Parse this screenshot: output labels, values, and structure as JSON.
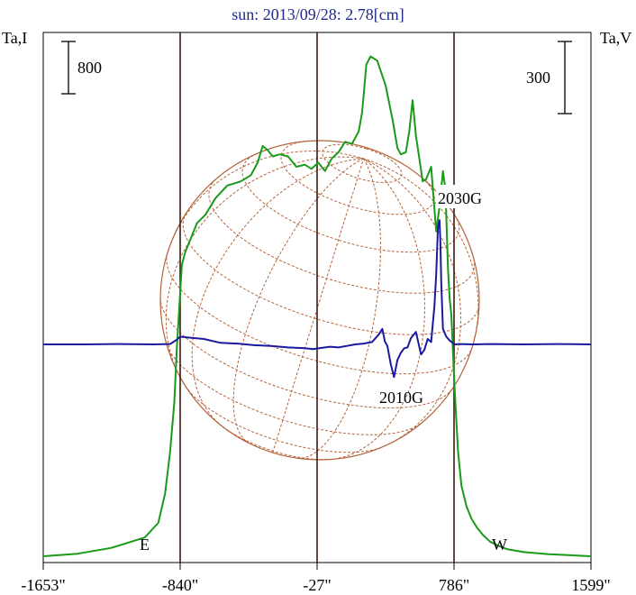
{
  "title": "sun: 2013/09/28: 2.78[cm]",
  "left_axis_label": "Ta,I",
  "right_axis_label": "Ta,V",
  "left_scale_label": "800",
  "right_scale_label": "300",
  "east_label": "E",
  "west_label": "W",
  "annotations": [
    "2030G",
    "2010G"
  ],
  "colors": {
    "intensity": "#1a9a1a",
    "polarization": "#1a1aa0",
    "solar_grid": "#b4643c",
    "vertical_lines": "#3a1a10",
    "title": "#1f2a8a"
  },
  "chart_data": {
    "type": "line",
    "title": "sun: 2013/09/28: 2.78[cm]",
    "x_unit": "arcsec",
    "x_ticks": [
      -1653,
      -840,
      -27,
      786,
      1599
    ],
    "x_tick_labels": [
      "-1653\"",
      "-840\"",
      "-27\"",
      "786\"",
      "1599\""
    ],
    "xlim": [
      -1653,
      1599
    ],
    "vertical_markers": [
      -840,
      -27,
      786
    ],
    "limb_labels": [
      {
        "text": "E",
        "x": -840
      },
      {
        "text": "W",
        "x": 786
      }
    ],
    "series": [
      {
        "name": "Ta,I",
        "color": "#1a9a1a",
        "x": [
          -1653,
          -1450,
          -1250,
          -1050,
          -970,
          -930,
          -900,
          -875,
          -860,
          -845,
          -830,
          -810,
          -780,
          -740,
          -690,
          -630,
          -560,
          -480,
          -420,
          -380,
          -350,
          -320,
          -290,
          -250,
          -200,
          -150,
          -100,
          -60,
          -20,
          20,
          60,
          100,
          140,
          180,
          220,
          240,
          250,
          265,
          290,
          330,
          380,
          420,
          450,
          470,
          500,
          520,
          540,
          560,
          580,
          600,
          620,
          650,
          680,
          700,
          720,
          735,
          750,
          760,
          770,
          790,
          810,
          830,
          860,
          890,
          920,
          960,
          1000,
          1050,
          1100,
          1200,
          1350,
          1500,
          1599
        ],
        "y": [
          0,
          60,
          200,
          450,
          800,
          1500,
          2500,
          3700,
          5000,
          6000,
          7000,
          7300,
          7600,
          8000,
          8200,
          8600,
          8900,
          9000,
          9150,
          9450,
          9850,
          9750,
          9600,
          9650,
          9600,
          9350,
          9400,
          9300,
          9450,
          9250,
          9550,
          9700,
          9950,
          9900,
          10200,
          10650,
          11100,
          11800,
          12000,
          11900,
          11300,
          10500,
          9800,
          9650,
          9700,
          10200,
          10950,
          10100,
          9550,
          9000,
          9050,
          9350,
          7800,
          8400,
          9250,
          8800,
          6900,
          6200,
          5800,
          4000,
          2500,
          1700,
          1200,
          900,
          700,
          500,
          350,
          250,
          170,
          100,
          50,
          20,
          0
        ]
      },
      {
        "name": "Ta,V",
        "color": "#1a1aa0",
        "x": [
          -1653,
          -1400,
          -1200,
          -1000,
          -900,
          -860,
          -840,
          -800,
          -700,
          -600,
          -500,
          -400,
          -300,
          -200,
          -100,
          -50,
          0,
          50,
          100,
          150,
          200,
          250,
          300,
          340,
          360,
          375,
          390,
          410,
          430,
          450,
          470,
          490,
          510,
          530,
          560,
          590,
          610,
          630,
          650,
          670,
          680,
          690,
          700,
          705,
          710,
          720,
          740,
          760,
          790,
          820,
          900,
          1000,
          1200,
          1400,
          1599
        ],
        "y": [
          0,
          0,
          5,
          0,
          5,
          60,
          100,
          90,
          70,
          20,
          10,
          -10,
          -20,
          -40,
          -50,
          -60,
          -45,
          -30,
          -40,
          -20,
          0,
          10,
          30,
          130,
          200,
          40,
          -20,
          -250,
          -420,
          -200,
          -110,
          -50,
          -40,
          80,
          160,
          -130,
          -70,
          70,
          30,
          500,
          900,
          1500,
          1600,
          1300,
          800,
          200,
          100,
          50,
          0,
          5,
          0,
          5,
          0,
          5,
          0
        ]
      }
    ]
  }
}
